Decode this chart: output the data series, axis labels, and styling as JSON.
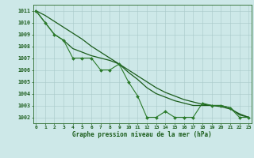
{
  "x": [
    0,
    1,
    2,
    3,
    4,
    5,
    6,
    7,
    8,
    9,
    10,
    11,
    12,
    13,
    14,
    15,
    16,
    17,
    18,
    19,
    20,
    21,
    22,
    23
  ],
  "y_main": [
    1011,
    1010,
    1009,
    1008.5,
    1007,
    1007,
    1007,
    1006,
    1006,
    1006.5,
    1005,
    1003.8,
    1002,
    1002,
    1002.5,
    1002,
    1002,
    1002,
    1003.2,
    1003,
    1003,
    1002.8,
    1002,
    1002
  ],
  "y_smooth": [
    1011,
    1010,
    1009,
    1008.5,
    1007.8,
    1007.5,
    1007.2,
    1007.0,
    1006.8,
    1006.5,
    1005.8,
    1005.2,
    1004.5,
    1004.0,
    1003.7,
    1003.4,
    1003.2,
    1003.0,
    1003.0,
    1003.0,
    1003.0,
    1002.8,
    1002.2,
    1002.0
  ],
  "y_trend": [
    1011,
    1010.6,
    1010.1,
    1009.6,
    1009.1,
    1008.6,
    1008.0,
    1007.5,
    1007.0,
    1006.5,
    1006.0,
    1005.5,
    1005.0,
    1004.5,
    1004.1,
    1003.8,
    1003.5,
    1003.3,
    1003.1,
    1003.0,
    1002.9,
    1002.7,
    1002.3,
    1002.0
  ],
  "background_color": "#cde8e8",
  "line_color_dark": "#1a5c1a",
  "line_color_mid": "#2a7a2a",
  "xlabel": "Graphe pression niveau de la mer (hPa)",
  "ylabel_ticks": [
    1002,
    1003,
    1004,
    1005,
    1006,
    1007,
    1008,
    1009,
    1010,
    1011
  ],
  "ylim": [
    1001.5,
    1011.5
  ],
  "xlim": [
    -0.3,
    23.3
  ]
}
